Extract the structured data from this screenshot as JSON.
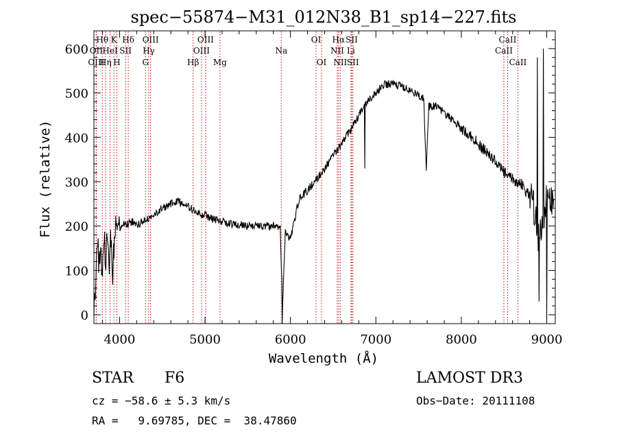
{
  "chart_data": {
    "type": "line",
    "title": "spec−55874−M31_012N38_B1_sp14−227.fits",
    "xlabel": "Wavelength (Å)",
    "ylabel": "Flux (relative)",
    "xlim": [
      3700,
      9100
    ],
    "ylim": [
      -20,
      640
    ],
    "xticks": [
      4000,
      5000,
      6000,
      7000,
      8000,
      9000
    ],
    "yticks": [
      0,
      100,
      200,
      300,
      400,
      500,
      600
    ],
    "line_color": "#000000",
    "marker_color": "#c00000",
    "spectrum_anchors": [
      [
        3700,
        30
      ],
      [
        3720,
        60
      ],
      [
        3740,
        160
      ],
      [
        3760,
        110
      ],
      [
        3780,
        150
      ],
      [
        3800,
        90
      ],
      [
        3820,
        170
      ],
      [
        3840,
        130
      ],
      [
        3860,
        165
      ],
      [
        3880,
        110
      ],
      [
        3900,
        175
      ],
      [
        3920,
        100
      ],
      [
        3950,
        190
      ],
      [
        3980,
        170
      ],
      [
        4000,
        195
      ],
      [
        4050,
        205
      ],
      [
        4100,
        205
      ],
      [
        4150,
        210
      ],
      [
        4200,
        200
      ],
      [
        4300,
        215
      ],
      [
        4400,
        225
      ],
      [
        4500,
        240
      ],
      [
        4600,
        250
      ],
      [
        4700,
        255
      ],
      [
        4800,
        245
      ],
      [
        4900,
        230
      ],
      [
        5000,
        225
      ],
      [
        5100,
        215
      ],
      [
        5200,
        210
      ],
      [
        5300,
        205
      ],
      [
        5400,
        203
      ],
      [
        5500,
        200
      ],
      [
        5600,
        200
      ],
      [
        5700,
        200
      ],
      [
        5800,
        200
      ],
      [
        5880,
        195
      ],
      [
        5895,
        100
      ],
      [
        5910,
        30
      ],
      [
        5925,
        120
      ],
      [
        5940,
        185
      ],
      [
        6000,
        170
      ],
      [
        6050,
        215
      ],
      [
        6100,
        260
      ],
      [
        6200,
        280
      ],
      [
        6300,
        305
      ],
      [
        6400,
        330
      ],
      [
        6500,
        360
      ],
      [
        6600,
        385
      ],
      [
        6700,
        415
      ],
      [
        6800,
        450
      ],
      [
        6900,
        480
      ],
      [
        7000,
        500
      ],
      [
        7100,
        520
      ],
      [
        7200,
        520
      ],
      [
        7300,
        515
      ],
      [
        7400,
        505
      ],
      [
        7500,
        495
      ],
      [
        7560,
        490
      ],
      [
        7590,
        330
      ],
      [
        7620,
        470
      ],
      [
        7700,
        470
      ],
      [
        7800,
        455
      ],
      [
        7900,
        440
      ],
      [
        8000,
        420
      ],
      [
        8100,
        405
      ],
      [
        8200,
        385
      ],
      [
        8300,
        365
      ],
      [
        8400,
        345
      ],
      [
        8500,
        320
      ],
      [
        8600,
        305
      ],
      [
        8700,
        295
      ],
      [
        8750,
        280
      ],
      [
        8800,
        270
      ],
      [
        8850,
        250
      ],
      [
        8900,
        180
      ],
      [
        8950,
        220
      ],
      [
        9000,
        260
      ],
      [
        9050,
        250
      ],
      [
        9100,
        240
      ]
    ],
    "spikes": [
      {
        "x": 5905,
        "y": -20
      },
      {
        "x": 6870,
        "y": 330
      },
      {
        "x": 7590,
        "y": 325
      },
      {
        "x": 8890,
        "y": 580
      },
      {
        "x": 8910,
        "y": 30
      },
      {
        "x": 8960,
        "y": 600
      },
      {
        "x": 9000,
        "y": -10
      }
    ],
    "lines": [
      {
        "label": "Hθ",
        "x": 3798,
        "row": 0
      },
      {
        "label": "OII",
        "x": 3727,
        "row": 1
      },
      {
        "label": "OIII",
        "x": 3727,
        "row": 2
      },
      {
        "label": "Hη",
        "x": 3835,
        "row": 2
      },
      {
        "label": "K",
        "x": 3934,
        "row": 0
      },
      {
        "label": "HeI",
        "x": 3889,
        "row": 1
      },
      {
        "label": "H",
        "x": 3969,
        "row": 2
      },
      {
        "label": "SII",
        "x": 4070,
        "row": 1
      },
      {
        "label": "Hδ",
        "x": 4102,
        "row": 0
      },
      {
        "label": "OIII",
        "x": 4363,
        "row": 0
      },
      {
        "label": "Hγ",
        "x": 4341,
        "row": 1
      },
      {
        "label": "G",
        "x": 4304,
        "row": 2
      },
      {
        "label": "Hβ",
        "x": 4861,
        "row": 2
      },
      {
        "label": "OIII",
        "x": 5007,
        "row": 0
      },
      {
        "label": "OIII",
        "x": 4959,
        "row": 1
      },
      {
        "label": "Mg",
        "x": 5175,
        "row": 2
      },
      {
        "label": "Na",
        "x": 5893,
        "row": 1
      },
      {
        "label": "OI",
        "x": 6300,
        "row": 0
      },
      {
        "label": "OI",
        "x": 6364,
        "row": 2
      },
      {
        "label": "Hα",
        "x": 6563,
        "row": 0
      },
      {
        "label": "NII",
        "x": 6548,
        "row": 1
      },
      {
        "label": "NII",
        "x": 6583,
        "row": 2
      },
      {
        "label": "SII",
        "x": 6717,
        "row": 0
      },
      {
        "label": "Li",
        "x": 6708,
        "row": 1
      },
      {
        "label": "SII",
        "x": 6731,
        "row": 2
      },
      {
        "label": "CaII",
        "x": 8542,
        "row": 0
      },
      {
        "label": "CaII",
        "x": 8498,
        "row": 1
      },
      {
        "label": "CaII",
        "x": 8662,
        "row": 2
      }
    ]
  },
  "info": {
    "object_class": "STAR",
    "subclass": "F6",
    "survey": "LAMOST DR3",
    "cz": "cz = −58.6 ± 5.3 km/s",
    "obs_date": "Obs−Date: 20111108",
    "coords": "RA =   9.69785, DEC =  38.47860"
  }
}
